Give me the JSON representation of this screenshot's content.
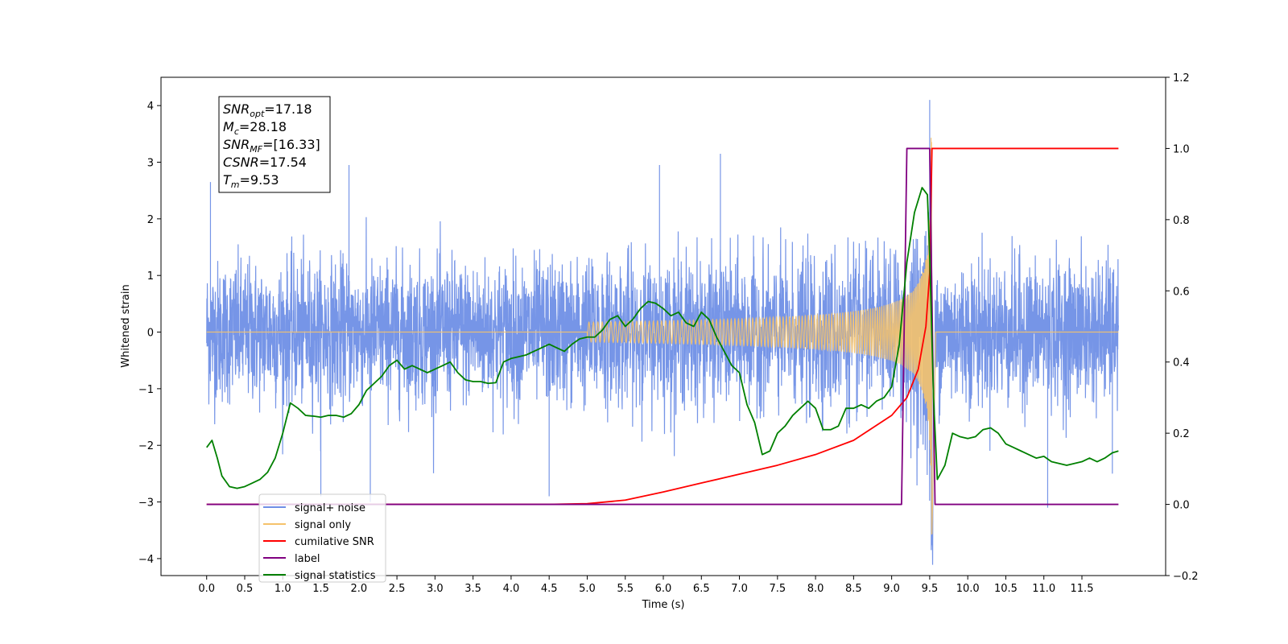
{
  "chart_data": {
    "type": "line",
    "xlabel": "Time (s)",
    "ylabel_left": "Whitened strain",
    "ylabel_right": "",
    "xlim": [
      -0.6,
      12.6
    ],
    "ylim_left": [
      -4.3,
      4.5
    ],
    "ylim_right": [
      -0.2,
      1.2
    ],
    "x_ticks": [
      0.0,
      0.5,
      1.0,
      1.5,
      2.0,
      2.5,
      3.0,
      3.5,
      4.0,
      4.5,
      5.0,
      5.5,
      6.0,
      6.5,
      7.0,
      7.5,
      8.0,
      8.5,
      9.0,
      9.5,
      10.0,
      10.5,
      11.0,
      11.5
    ],
    "x_tick_labels": [
      "0.0",
      "0.5",
      "1.0",
      "1.5",
      "2.0",
      "2.5",
      "3.0",
      "3.5",
      "4.0",
      "4.5",
      "5.0",
      "5.5",
      "6.0",
      "6.5",
      "7.0",
      "7.5",
      "8.0",
      "8.5",
      "9.0",
      "9.5",
      "10.0",
      "10.5",
      "11.0",
      "11.5"
    ],
    "y_ticks_left": [
      -4,
      -3,
      -2,
      -1,
      0,
      1,
      2,
      3,
      4
    ],
    "y_tick_labels_left": [
      "−4",
      "−3",
      "−2",
      "−1",
      "0",
      "1",
      "2",
      "3",
      "4"
    ],
    "y_ticks_right": [
      -0.2,
      0.0,
      0.2,
      0.4,
      0.6,
      0.8,
      1.0,
      1.2
    ],
    "y_tick_labels_right": [
      "−0.2",
      "0.0",
      "0.2",
      "0.4",
      "0.6",
      "0.8",
      "1.0",
      "1.2"
    ],
    "grid": false,
    "legend_position": "bottom-left",
    "legend": [
      {
        "label": "signal+ noise",
        "color": "#6f8fe6"
      },
      {
        "label": "signal only",
        "color": "#f5c26b"
      },
      {
        "label": "cumilative SNR",
        "color": "#ff0000"
      },
      {
        "label": "label",
        "color": "#800080"
      },
      {
        "label": "signal statistics",
        "color": "#008000"
      }
    ],
    "annotation": {
      "lines": [
        {
          "base": "SNR",
          "sub": "opt",
          "value": "=17.18"
        },
        {
          "base": "M",
          "sub": "c",
          "value": "=28.18"
        },
        {
          "base": "SNR",
          "sub": "MF",
          "value": "=[16.33]"
        },
        {
          "base": "CSNR",
          "sub": "",
          "value": "=17.54"
        },
        {
          "base": "T",
          "sub": "m",
          "value": "=9.53"
        }
      ]
    },
    "series": [
      {
        "key": "noise",
        "axis": "left",
        "color": "#6f8fe6",
        "description_range": [
          0.0,
          11.98
        ],
        "typical_amplitude": 1.5,
        "spike_peaks": [
          {
            "x": 0.05,
            "y": 2.65
          },
          {
            "x": 1.5,
            "y": -2.9
          },
          {
            "x": 1.87,
            "y": 2.95
          },
          {
            "x": 2.15,
            "y": -3.0
          },
          {
            "x": 4.5,
            "y": -2.9
          },
          {
            "x": 5.95,
            "y": 2.95
          },
          {
            "x": 6.75,
            "y": 3.15
          },
          {
            "x": 9.5,
            "y": 4.1
          },
          {
            "x": 9.52,
            "y": -3.85
          },
          {
            "x": 11.05,
            "y": -3.1
          },
          {
            "x": 11.9,
            "y": -2.5
          }
        ]
      },
      {
        "key": "signal",
        "axis": "left",
        "color": "#f5c26b",
        "chirp_start": 5.0,
        "merger_time": 9.53,
        "peak_amplitude": 3.6
      },
      {
        "key": "cumulative_snr",
        "axis": "right",
        "color": "#ff0000",
        "x": [
          0.0,
          4.5,
          5.0,
          5.5,
          6.0,
          6.5,
          7.0,
          7.5,
          8.0,
          8.5,
          9.0,
          9.2,
          9.35,
          9.45,
          9.5,
          9.53,
          9.55,
          11.98
        ],
        "y": [
          0.0,
          0.0,
          0.002,
          0.012,
          0.035,
          0.06,
          0.085,
          0.11,
          0.14,
          0.18,
          0.25,
          0.3,
          0.38,
          0.5,
          0.65,
          1.0,
          1.0,
          1.0
        ]
      },
      {
        "key": "label",
        "axis": "right",
        "color": "#800080",
        "x": [
          0.0,
          9.13,
          9.2,
          9.5,
          9.57,
          11.98
        ],
        "y": [
          0.0,
          0.0,
          1.0,
          1.0,
          0.0,
          0.0
        ]
      },
      {
        "key": "signal_statistics",
        "axis": "right",
        "color": "#008000",
        "x": [
          0.0,
          0.07,
          0.14,
          0.2,
          0.3,
          0.4,
          0.5,
          0.6,
          0.7,
          0.8,
          0.9,
          1.0,
          1.1,
          1.2,
          1.3,
          1.4,
          1.5,
          1.6,
          1.7,
          1.8,
          1.9,
          2.0,
          2.1,
          2.2,
          2.3,
          2.4,
          2.5,
          2.6,
          2.7,
          2.8,
          2.9,
          3.0,
          3.1,
          3.2,
          3.3,
          3.4,
          3.5,
          3.6,
          3.7,
          3.8,
          3.9,
          4.0,
          4.1,
          4.2,
          4.3,
          4.4,
          4.5,
          4.6,
          4.7,
          4.8,
          4.9,
          5.0,
          5.1,
          5.2,
          5.3,
          5.4,
          5.5,
          5.6,
          5.7,
          5.8,
          5.9,
          6.0,
          6.1,
          6.2,
          6.3,
          6.4,
          6.5,
          6.6,
          6.7,
          6.8,
          6.9,
          7.0,
          7.1,
          7.2,
          7.3,
          7.4,
          7.5,
          7.6,
          7.7,
          7.8,
          7.9,
          8.0,
          8.1,
          8.2,
          8.3,
          8.4,
          8.5,
          8.6,
          8.7,
          8.8,
          8.9,
          9.0,
          9.1,
          9.2,
          9.3,
          9.4,
          9.47,
          9.5,
          9.55,
          9.6,
          9.7,
          9.8,
          9.9,
          10.0,
          10.1,
          10.2,
          10.3,
          10.4,
          10.5,
          10.6,
          10.7,
          10.8,
          10.9,
          11.0,
          11.1,
          11.2,
          11.3,
          11.4,
          11.5,
          11.6,
          11.7,
          11.8,
          11.9,
          11.98
        ],
        "y": [
          0.16,
          0.18,
          0.13,
          0.08,
          0.05,
          0.045,
          0.05,
          0.06,
          0.07,
          0.09,
          0.13,
          0.2,
          0.285,
          0.27,
          0.25,
          0.248,
          0.245,
          0.25,
          0.25,
          0.245,
          0.255,
          0.28,
          0.32,
          0.34,
          0.36,
          0.39,
          0.405,
          0.38,
          0.39,
          0.38,
          0.37,
          0.38,
          0.39,
          0.4,
          0.37,
          0.35,
          0.345,
          0.345,
          0.34,
          0.342,
          0.4,
          0.41,
          0.415,
          0.42,
          0.43,
          0.44,
          0.45,
          0.44,
          0.43,
          0.45,
          0.465,
          0.47,
          0.47,
          0.49,
          0.52,
          0.53,
          0.5,
          0.52,
          0.55,
          0.57,
          0.565,
          0.55,
          0.53,
          0.54,
          0.51,
          0.5,
          0.54,
          0.52,
          0.47,
          0.43,
          0.39,
          0.37,
          0.28,
          0.23,
          0.14,
          0.15,
          0.2,
          0.22,
          0.25,
          0.27,
          0.29,
          0.27,
          0.21,
          0.21,
          0.22,
          0.27,
          0.27,
          0.28,
          0.27,
          0.29,
          0.3,
          0.33,
          0.45,
          0.68,
          0.82,
          0.89,
          0.87,
          0.7,
          0.3,
          0.07,
          0.11,
          0.2,
          0.19,
          0.185,
          0.19,
          0.21,
          0.215,
          0.2,
          0.17,
          0.16,
          0.15,
          0.14,
          0.13,
          0.135,
          0.12,
          0.115,
          0.11,
          0.115,
          0.12,
          0.13,
          0.12,
          0.13,
          0.145,
          0.15
        ]
      }
    ]
  }
}
